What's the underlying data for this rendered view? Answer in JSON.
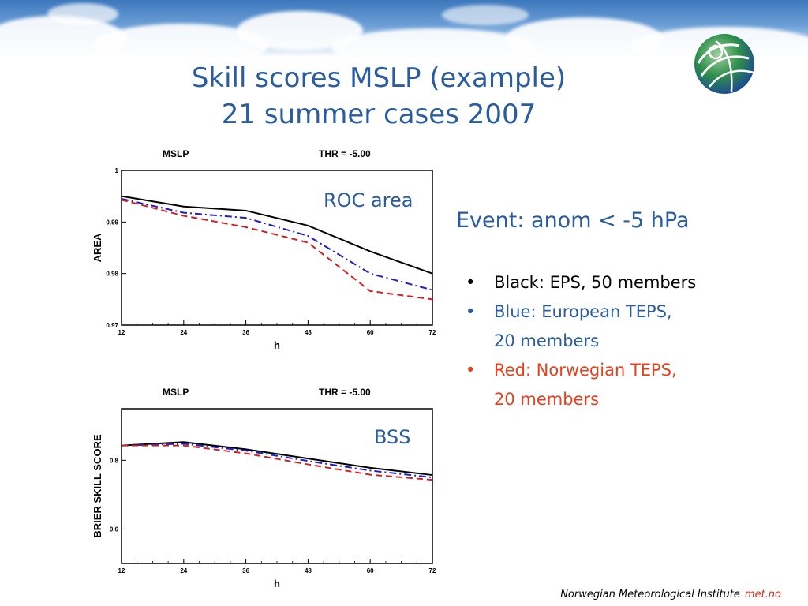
{
  "slide": {
    "title_line1": "Skill scores MSLP (example)",
    "title_line2": "21 summer cases 2007",
    "roc_label": "ROC area",
    "bss_label": "BSS",
    "event_title": "Event: anom < -5 hPa",
    "bullets": [
      {
        "line1": "Black: EPS, 50 members",
        "line2": "",
        "color": "#000000"
      },
      {
        "line1": "Blue: European TEPS,",
        "line2": "20 members",
        "color": "#2a5d9f"
      },
      {
        "line1": "Red: Norwegian TEPS,",
        "line2": "20 members",
        "color": "#e8401c"
      }
    ],
    "bullet_char": "•",
    "footer_text": "Norwegian Meteorological Institute",
    "footer_brand": "met.no",
    "logo_icon": "met-no-globe-logo"
  },
  "chart_data": [
    {
      "type": "line",
      "header_left": "MSLP",
      "header_right": "THR =  -5.00",
      "xlabel": "h",
      "ylabel": "AREA",
      "x": [
        12,
        24,
        36,
        48,
        60,
        72
      ],
      "xticks": [
        "12",
        "24",
        "36",
        "48",
        "60",
        "72"
      ],
      "ylim": [
        0.97,
        1.0
      ],
      "yticks": [
        {
          "value": 0.97,
          "label": "0.97"
        },
        {
          "value": 0.98,
          "label": "0.98"
        },
        {
          "value": 0.99,
          "label": "0.99"
        },
        {
          "value": 1.0,
          "label": "1"
        }
      ],
      "series": [
        {
          "color": "#000000",
          "dash": "",
          "values": [
            0.995,
            0.993,
            0.9922,
            0.9893,
            0.9843,
            0.98
          ]
        },
        {
          "color": "#1f1fc8",
          "dash": "9,4,2,4",
          "values": [
            0.9945,
            0.9918,
            0.9908,
            0.9873,
            0.98,
            0.9768
          ]
        },
        {
          "color": "#d42020",
          "dash": "8,5",
          "values": [
            0.9943,
            0.9912,
            0.989,
            0.986,
            0.9766,
            0.975
          ]
        }
      ]
    },
    {
      "type": "line",
      "header_left": "MSLP",
      "header_right": "THR =  -5.00",
      "xlabel": "h",
      "ylabel": "BRIER SKILL SCORE",
      "x": [
        12,
        24,
        36,
        48,
        60,
        72
      ],
      "xticks": [
        "12",
        "24",
        "36",
        "48",
        "60",
        "72"
      ],
      "ylim": [
        0.5,
        0.95
      ],
      "yticks": [
        {
          "value": 0.6,
          "label": "0.6"
        },
        {
          "value": 0.8,
          "label": "0.8"
        }
      ],
      "series": [
        {
          "color": "#000000",
          "dash": "",
          "values": [
            0.843,
            0.853,
            0.832,
            0.805,
            0.778,
            0.757
          ]
        },
        {
          "color": "#1f1fc8",
          "dash": "9,4,2,4",
          "values": [
            0.843,
            0.848,
            0.828,
            0.798,
            0.77,
            0.75
          ]
        },
        {
          "color": "#d42020",
          "dash": "8,5",
          "values": [
            0.843,
            0.843,
            0.82,
            0.788,
            0.758,
            0.743
          ]
        }
      ]
    }
  ]
}
